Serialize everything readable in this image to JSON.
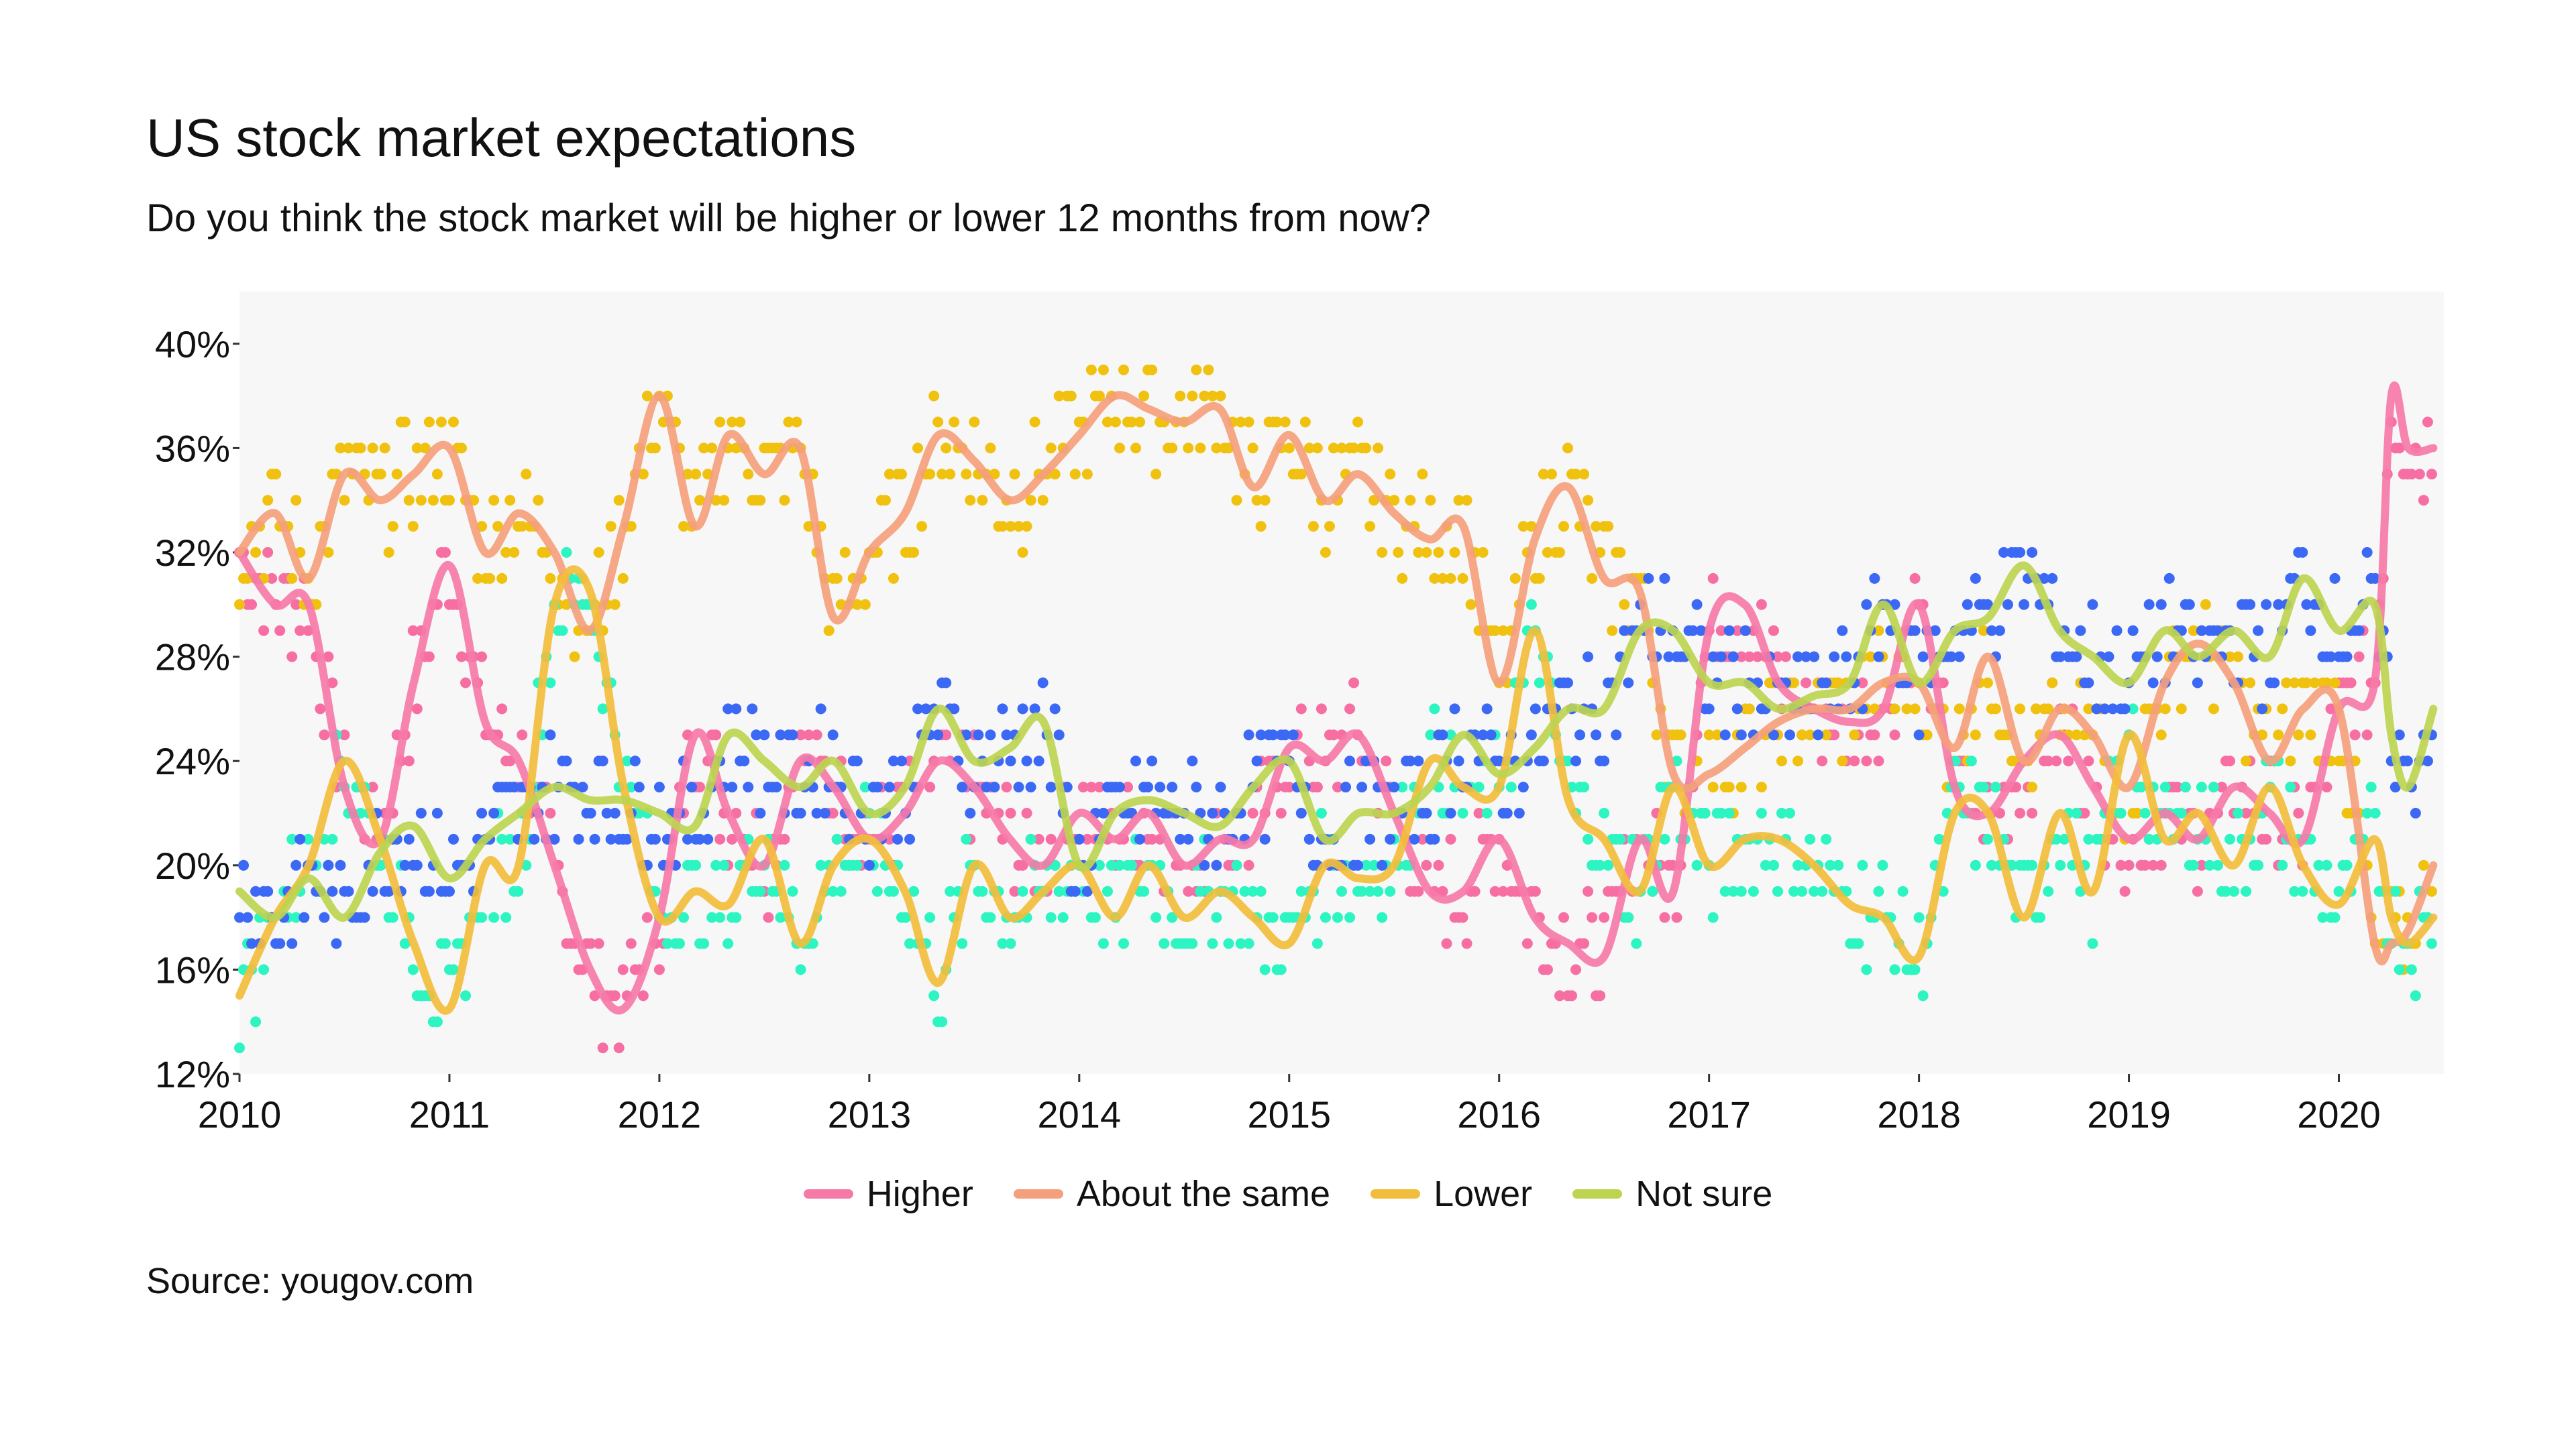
{
  "chart_data": {
    "type": "line",
    "title": "US stock market expectations",
    "subtitle": "Do you think the stock market will be higher or lower 12 months from now?",
    "source": "Source: yougov.com",
    "xlabel": "",
    "ylabel": "",
    "xlim": [
      2010,
      2020.5
    ],
    "ylim": [
      12,
      42
    ],
    "x_ticks": [
      "2010",
      "2011",
      "2012",
      "2013",
      "2014",
      "2015",
      "2016",
      "2017",
      "2018",
      "2019",
      "2020"
    ],
    "y_ticks": [
      "12%",
      "16%",
      "20%",
      "24%",
      "28%",
      "32%",
      "36%",
      "40%"
    ],
    "grid": false,
    "legend_position": "bottom",
    "background": "#f7f7f7",
    "x": [
      2010,
      2010.17,
      2010.33,
      2010.5,
      2010.67,
      2010.83,
      2011,
      2011.17,
      2011.33,
      2011.5,
      2011.67,
      2011.83,
      2012,
      2012.17,
      2012.33,
      2012.5,
      2012.67,
      2012.83,
      2013,
      2013.17,
      2013.33,
      2013.5,
      2013.67,
      2013.83,
      2014,
      2014.17,
      2014.33,
      2014.5,
      2014.67,
      2014.83,
      2015,
      2015.17,
      2015.33,
      2015.5,
      2015.67,
      2015.83,
      2016,
      2016.17,
      2016.33,
      2016.5,
      2016.67,
      2016.83,
      2017,
      2017.17,
      2017.33,
      2017.5,
      2017.67,
      2017.83,
      2018,
      2018.17,
      2018.33,
      2018.5,
      2018.67,
      2018.83,
      2019,
      2019.17,
      2019.33,
      2019.5,
      2019.67,
      2019.83,
      2020,
      2020.17,
      2020.25,
      2020.33,
      2020.45
    ],
    "series": [
      {
        "name": "Higher",
        "line_color": "#f57aa8",
        "dot_color": "#f76ea3",
        "values": [
          32,
          30,
          30,
          23,
          21,
          27,
          31.5,
          25.5,
          24,
          20,
          16,
          14.5,
          18,
          25,
          22,
          20,
          24,
          23,
          21,
          22,
          24,
          23,
          21,
          20,
          22,
          21,
          22,
          20,
          21,
          21,
          24.5,
          24,
          25,
          22,
          19,
          19,
          21,
          18,
          17,
          16.5,
          21,
          19,
          29,
          30,
          27,
          26,
          25.5,
          26,
          30,
          23,
          22,
          24,
          25,
          23,
          21,
          22,
          21,
          23,
          22,
          21,
          26,
          27,
          38,
          36,
          36
        ]
      },
      {
        "name": "About the same",
        "line_color": "#f4a07c",
        "dot_color": "#f0c20f",
        "values": [
          32,
          33.5,
          31,
          35,
          34,
          35,
          36,
          32,
          33.5,
          32,
          29,
          33,
          38,
          33,
          36.5,
          35,
          36,
          29.5,
          32,
          33.5,
          36.5,
          35.5,
          34,
          35,
          36.5,
          38,
          37.5,
          37,
          37.5,
          34.5,
          36.5,
          34,
          35,
          33.5,
          32.5,
          33,
          27,
          32.5,
          34.5,
          31,
          30.5,
          23.5,
          23.5,
          24.5,
          25.5,
          26,
          26,
          27,
          27,
          24.5,
          28,
          24,
          26,
          25,
          23,
          27,
          28.5,
          27,
          24,
          26,
          26,
          17,
          17,
          17.5,
          20
        ]
      },
      {
        "name": "Lower",
        "line_color": "#f2bd3c",
        "dot_color": "#2cf5c2",
        "values": [
          15,
          18,
          20,
          24,
          21,
          17,
          14.5,
          20,
          20,
          30,
          30.5,
          23,
          18,
          19,
          18.5,
          21,
          17,
          20,
          21,
          19,
          15.5,
          20,
          18,
          19,
          20,
          18,
          20,
          18,
          19,
          18,
          17,
          20,
          19.5,
          20,
          24,
          23,
          23,
          29,
          22.5,
          21,
          19,
          23,
          20,
          21,
          21,
          20,
          18.5,
          18,
          16.5,
          22,
          22,
          18,
          22,
          19,
          25,
          21,
          22,
          20,
          23,
          20,
          18.5,
          21,
          18,
          17,
          18
        ]
      },
      {
        "name": "Not sure",
        "line_color": "#bcd450",
        "dot_color": "#3b68f5",
        "values": [
          19,
          18,
          19.5,
          18,
          20.5,
          21.5,
          19.5,
          21,
          22,
          23,
          22.5,
          22.5,
          22,
          21.5,
          25,
          24,
          23,
          24,
          22,
          23,
          26,
          24,
          24.5,
          25.5,
          20,
          22,
          22.5,
          22,
          21.5,
          23,
          24,
          21,
          22,
          22,
          23,
          25,
          23.5,
          24.5,
          26,
          26,
          29,
          29,
          27,
          27,
          26,
          26.5,
          27,
          30,
          27,
          29,
          29.5,
          31.5,
          29,
          28,
          27,
          29,
          28,
          29,
          28,
          31,
          29,
          30,
          25,
          23,
          26
        ]
      }
    ]
  }
}
